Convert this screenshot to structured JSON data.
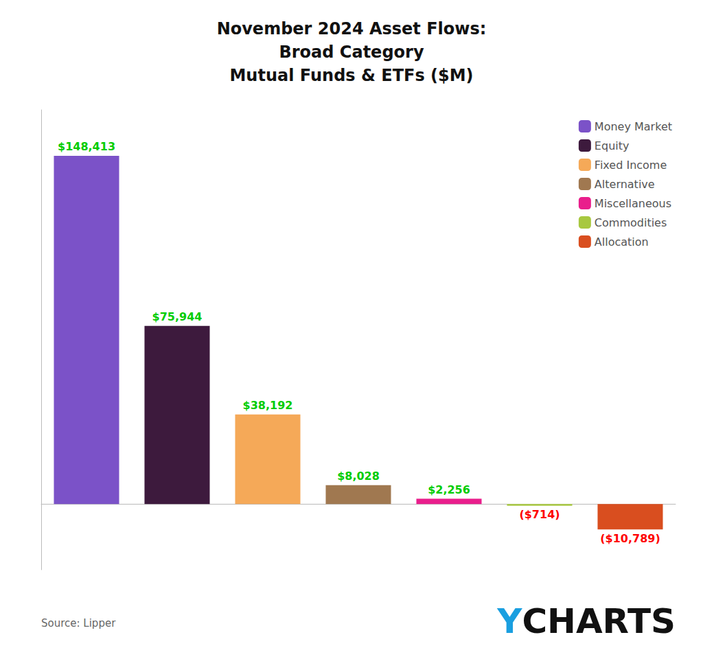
{
  "chart_data": {
    "type": "bar",
    "title": "November 2024 Asset Flows:\nBroad Category\nMutual Funds & ETFs ($M)",
    "categories": [
      "Money Market",
      "Equity",
      "Fixed Income",
      "Alternative",
      "Miscellaneous",
      "Commodities",
      "Allocation"
    ],
    "values": [
      148413,
      75944,
      38192,
      8028,
      2256,
      -714,
      -10789
    ],
    "value_labels": [
      "$148,413",
      "$75,944",
      "$38,192",
      "$8,028",
      "$2,256",
      "($714)",
      "($10,789)"
    ],
    "colors": [
      "#7B52C8",
      "#3D1A3D",
      "#F5A958",
      "#A07850",
      "#E91E8C",
      "#A8C840",
      "#D94E1F"
    ],
    "ylim": [
      -28000,
      168000
    ],
    "data_labels": true,
    "tick_labels": false,
    "grid": false,
    "legend": "upper right",
    "annotations": [
      {
        "text": "Source: Lipper",
        "color": "#666666"
      },
      {
        "text": "Y",
        "color": "#1A9FE0"
      },
      {
        "text": "CHARTS",
        "color": "#111111"
      }
    ]
  }
}
